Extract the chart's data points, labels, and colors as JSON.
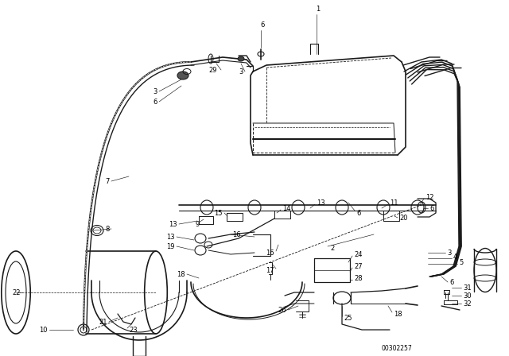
{
  "bg_color": "#ffffff",
  "line_color": "#1a1a1a",
  "fig_width": 6.4,
  "fig_height": 4.48,
  "dpi": 100,
  "diagram_code": "00302257",
  "font_size": 6.0
}
